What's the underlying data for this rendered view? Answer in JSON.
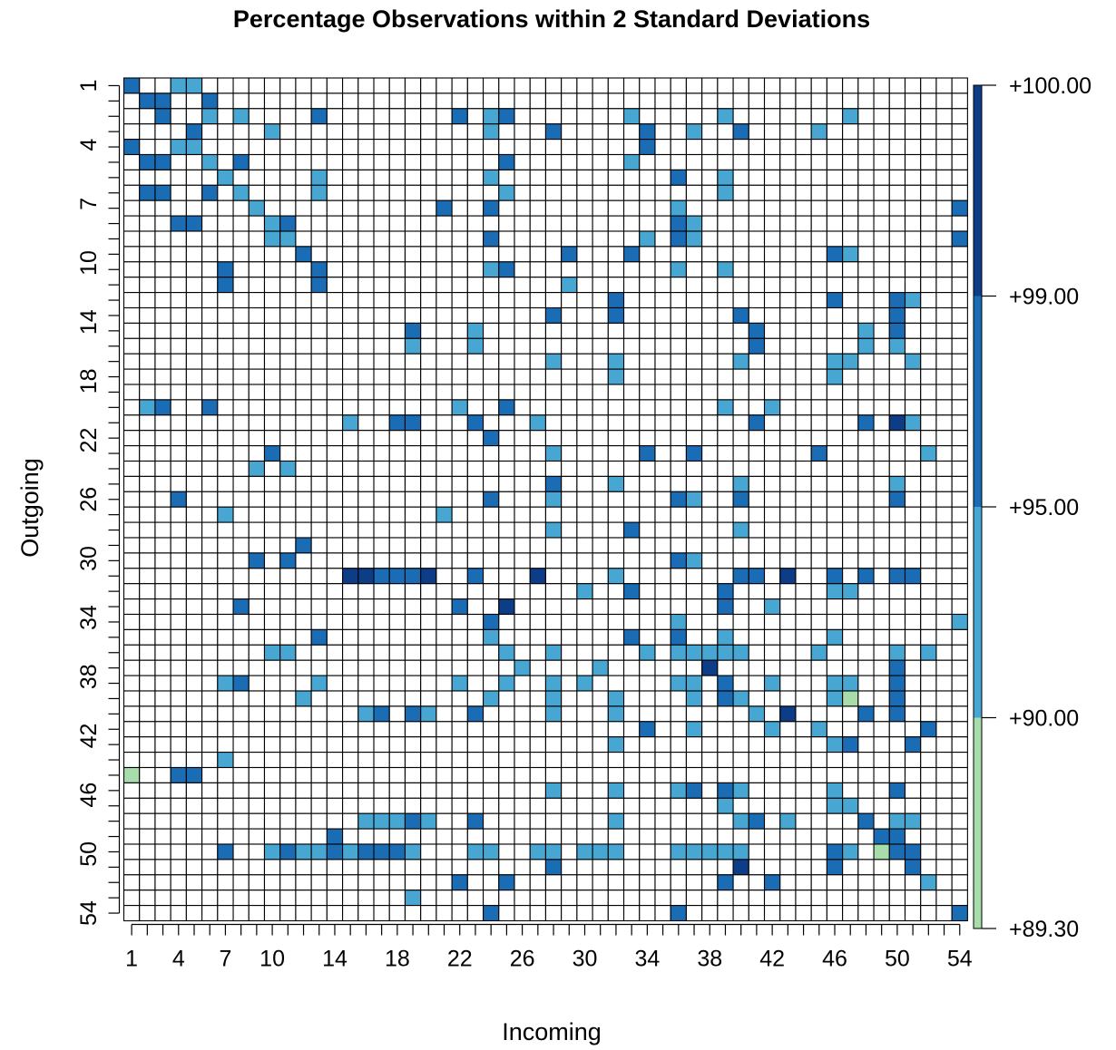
{
  "chart_data": {
    "type": "heatmap",
    "title": "Percentage Observations within 2 Standard Deviations",
    "xlabel": "Incoming",
    "ylabel": "Outgoing",
    "n": 54,
    "x_ticks": [
      "1",
      "4",
      "7",
      "10",
      "14",
      "18",
      "22",
      "26",
      "30",
      "34",
      "38",
      "42",
      "46",
      "50",
      "54"
    ],
    "y_ticks": [
      "1",
      "4",
      "7",
      "10",
      "14",
      "18",
      "22",
      "26",
      "30",
      "34",
      "38",
      "42",
      "46",
      "50",
      "54"
    ],
    "colorbar": {
      "ticks": [
        "+100.00",
        "+99.00",
        "+95.00",
        "+90.00",
        "+89.30"
      ],
      "bins": [
        {
          "key": "a",
          "range": [
            89.3,
            90
          ],
          "color": "#a8dcaa"
        },
        {
          "key": "b",
          "range": [
            90,
            95
          ],
          "color": "#48a7d2"
        },
        {
          "key": "c",
          "range": [
            95,
            99
          ],
          "color": "#1a6db5"
        },
        {
          "key": "d",
          "range": [
            99,
            100
          ],
          "color": "#0c3d86"
        }
      ]
    },
    "empty_color": "#ffffff",
    "cell_categories": [
      "1:1c,4b,5b",
      "2:2c,3c,6c",
      "3:3c,6b,8b,13c,22c,24b,25c,33b,39b,47b",
      "4:5c,10b,24b,28c,34c,37b,40c,45b",
      "5:1c,4b,5b,34c",
      "6:2c,3c,6b,8c,25c,33b",
      "7:7b,13b,24b,36c,39b",
      "8:2c,3c,6c,8b,13b,25b,39b",
      "9:9b,21c,24c,36b,54c",
      "10:4c,5c,11c,10b,36c,37b",
      "11:10b,11b,24c,34b,36c,37b,54c",
      "12:12c,29c,33c,46c,47b",
      "13:7c,13c,24b,25c,36b,39b",
      "14:7c,13c,29b",
      "15:32c,46c,50c,51b",
      "16:28c,32c,40c,50c",
      "17:19c,23b,41c,48b,50c",
      "18:19b,23b,41c,48b,50b",
      "19:28b,32b,40b,46b,47b,51b",
      "20:32b,46b",
      "21:",
      "22:2b,3c,6c,22b,25c,39b,42b",
      "23:15b,18c,19c,23c,27b,41c,48c,50d,51b",
      "24:24c",
      "25:10c,28b,34c,37c,45c,52b",
      "26:9b,11b",
      "27:28c,32b,40b,50b",
      "28:4c,24c,28b,36c,37b,40c,50c",
      "29:7b,21b",
      "30:28b,33c,40b",
      "31:12c",
      "32:9c,11c,36c,37b",
      "33:15d,16d,17c,18c,19c,20d,23c,27d,32b,40c,41c,43d,46c,48c,50c,51c",
      "34:30b,33c,39c,46b,47b",
      "35:8c,22c,25d,39c,42b",
      "36:24c,36b,54b",
      "37:13c,24b,33c,36c,39b,46b",
      "38:10b,11b,25b,28b,34b,36b,37b,38b,39b,40b,45b,50b,52b",
      "39:26b,31b,38d,50c",
      "40:7b,8c,13b,22b,25b,28b,30b,36b,37b,39c,42b,46b,47b,50c",
      "41:12b,24b,28b,32b,37b,39c,40b,46b,47a,50c",
      "42:16b,17c,19c,20b,23c,28b,32b,41b,43d,48c,50c",
      "43:34c,37b,42b,45b,52c",
      "44:32b,46b,47c,51c",
      "45:7b",
      "46:1a,4c,5c",
      "47:28b,32b,36b,37c,39c,40b,46b,50c",
      "48:39b,46b,47b",
      "49:16b,17b,18b,19c,20b,23c,32b,40b,41c,43b,48c,50b,51b",
      "50:14c,49c,50c",
      "51:7c,10b,11c,12b,13b,14c,15b,16c,17c,18c,19b,23b,24b,27b,28b,30b,31b,32b,36b,37b,38b,39b,40b,46c,47b,49a,50c,51c",
      "52:28c,40d,46c,51c",
      "53:22c,25c,39c,42c,52b",
      "54:19b",
      "55:24c,36c,54c"
    ]
  }
}
